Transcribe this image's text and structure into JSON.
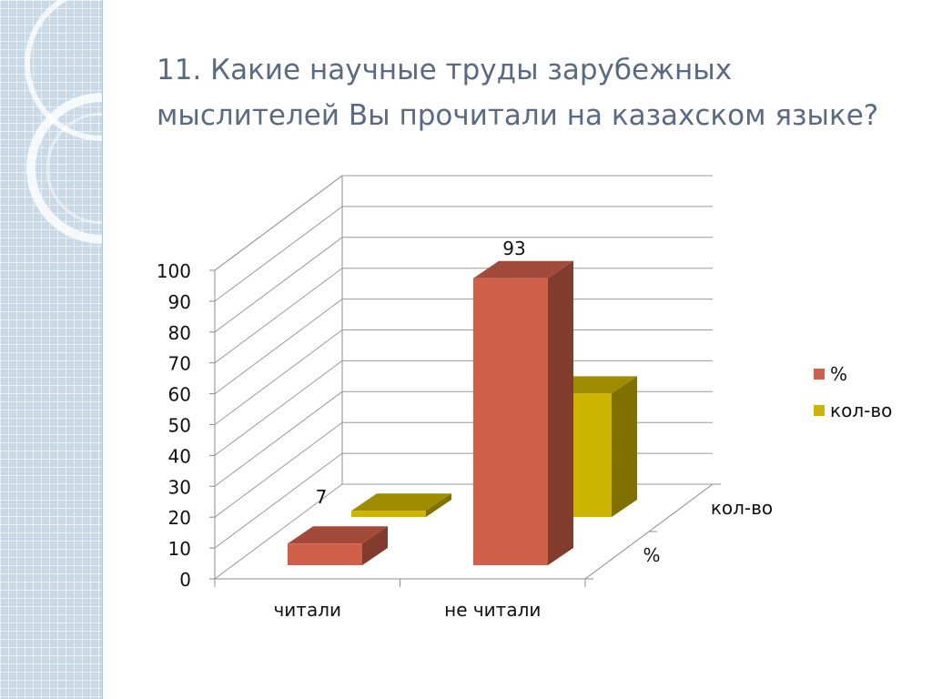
{
  "slide": {
    "title": "11. Какие научные труды зарубежных мыслителей Вы прочитали на казахском языке?"
  },
  "chart_data": {
    "type": "bar",
    "subtype": "3d-clustered",
    "title": "",
    "categories": [
      "читали",
      "не читали"
    ],
    "series": [
      {
        "name": "%",
        "values": [
          7,
          93
        ],
        "color": "#d1604a"
      },
      {
        "name": "кол-во",
        "values": [
          2,
          40
        ],
        "color": "#cdb400"
      }
    ],
    "data_labels": {
      "%": [
        "7",
        "93"
      ]
    },
    "depth_labels": [
      "%",
      "кол-во"
    ],
    "y_ticks": [
      "0",
      "10",
      "20",
      "30",
      "40",
      "50",
      "60",
      "70",
      "80",
      "90",
      "100"
    ],
    "ylim": [
      0,
      100
    ],
    "grid": true,
    "legend": {
      "position": "right",
      "entries": [
        "%",
        "кол-во"
      ]
    }
  }
}
